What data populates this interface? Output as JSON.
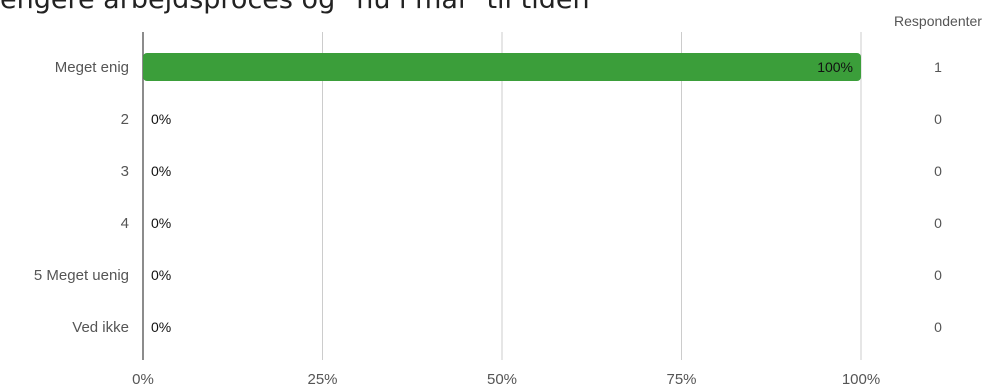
{
  "title": "engere arbejdsproces og \"nu i mål\" til tiden",
  "chart_data": {
    "type": "bar",
    "orientation": "horizontal",
    "categories": [
      "Meget enig",
      "2",
      "3",
      "4",
      "5 Meget uenig",
      "Ved ikke"
    ],
    "values": [
      100,
      0,
      0,
      0,
      0,
      0
    ],
    "value_labels": [
      "100%",
      "0%",
      "0%",
      "0%",
      "0%",
      "0%"
    ],
    "counts": [
      1,
      0,
      0,
      0,
      0,
      0
    ],
    "count_header": "Respondenter",
    "xlim": [
      0,
      100
    ],
    "xticks": [
      0,
      25,
      50,
      75,
      100
    ],
    "xtick_labels": [
      "0%",
      "25%",
      "50%",
      "75%",
      "100%"
    ],
    "grid": true,
    "bar_color": "#3b9e3a",
    "label_color": "#555555",
    "grid_color": "#cccccc"
  }
}
